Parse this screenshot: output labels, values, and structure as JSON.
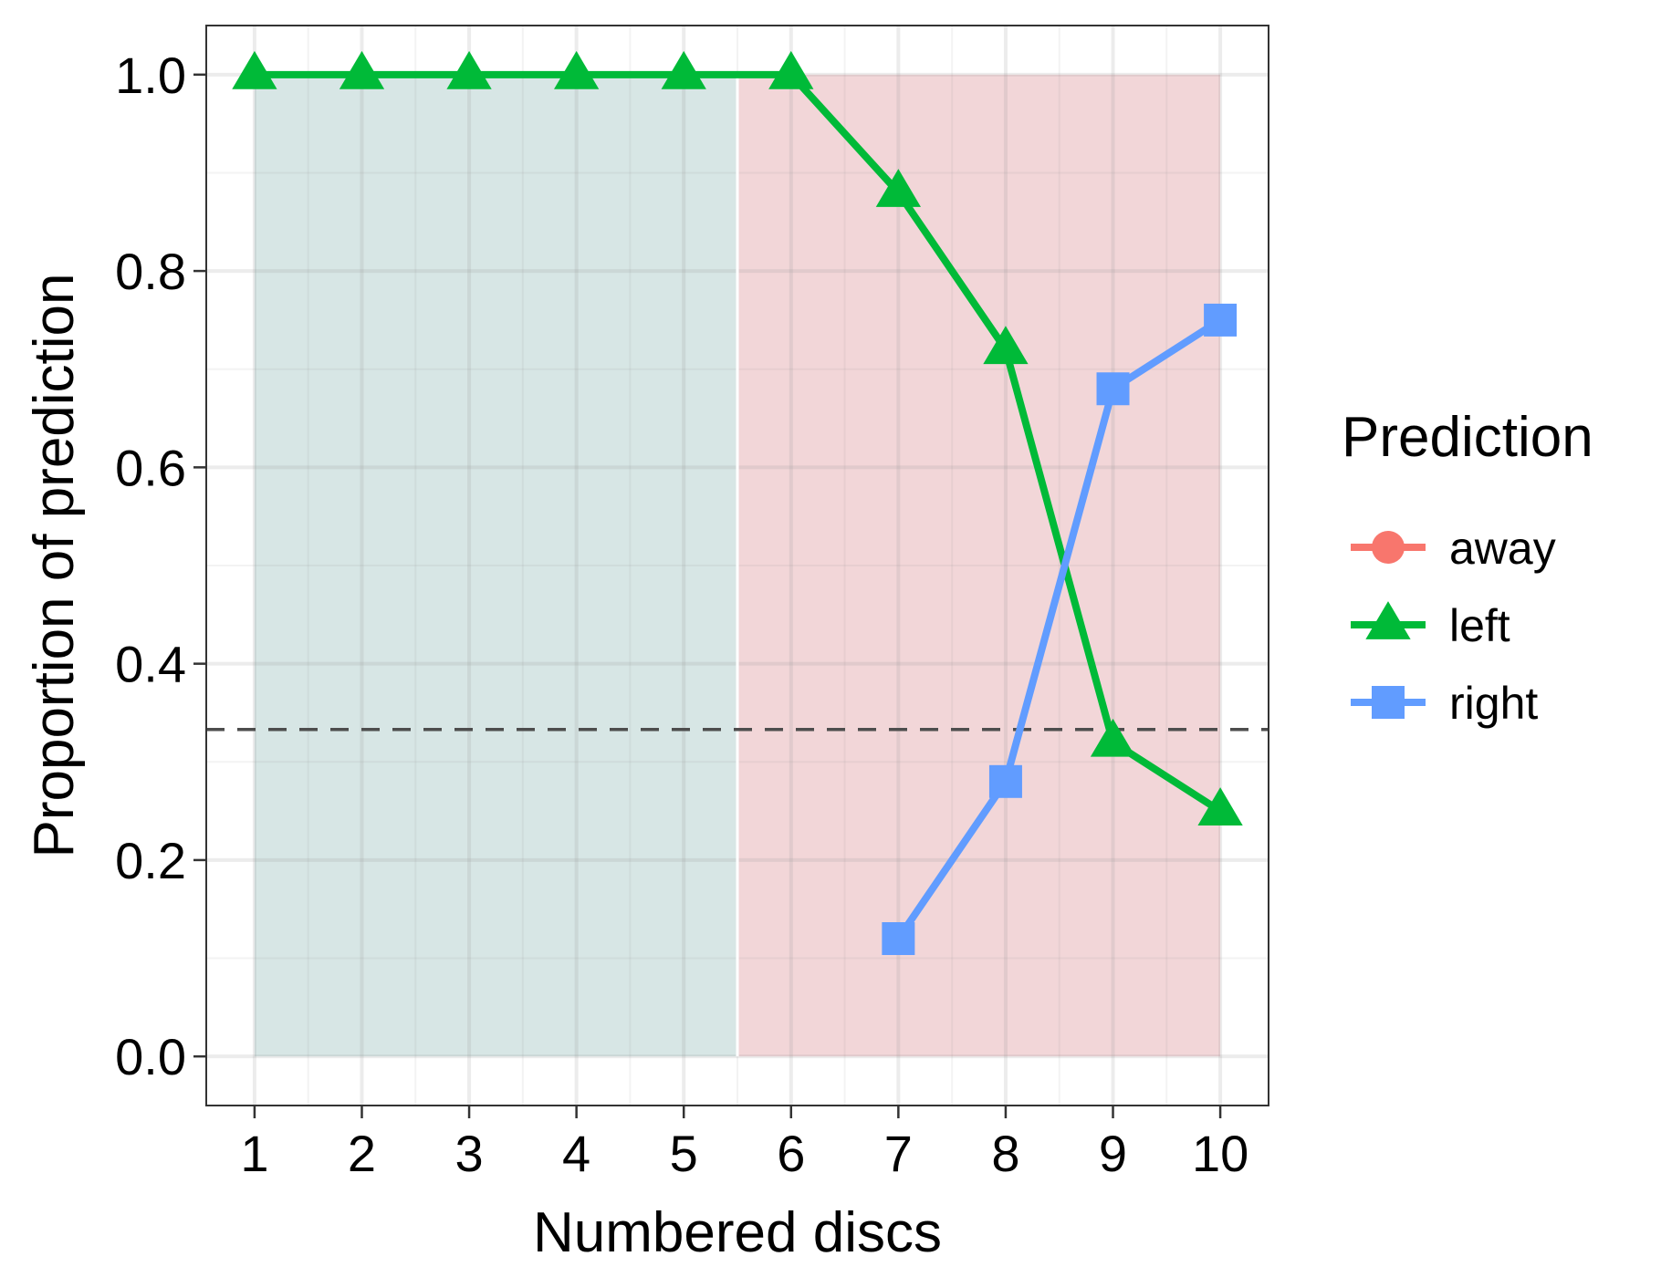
{
  "chart_data": {
    "type": "line",
    "title": "",
    "xlabel": "Numbered discs",
    "ylabel": "Proportion of prediction",
    "x": [
      1,
      2,
      3,
      4,
      5,
      6,
      7,
      8,
      9,
      10
    ],
    "xlim": [
      0.55,
      10.45
    ],
    "ylim": [
      -0.05,
      1.05
    ],
    "x_ticks": [
      "1",
      "2",
      "3",
      "4",
      "5",
      "6",
      "7",
      "8",
      "9",
      "10"
    ],
    "y_ticks": [
      "0.0",
      "0.2",
      "0.4",
      "0.6",
      "0.8",
      "1.0"
    ],
    "grid": true,
    "reference_line": {
      "y": 0.333,
      "style": "dashed",
      "color": "#4d4d4d"
    },
    "regions": [
      {
        "x_start": 1,
        "x_end": 5.5,
        "y_start": 0,
        "y_end": 1,
        "color": "#d7e6e5"
      },
      {
        "x_start": 5.5,
        "x_end": 10,
        "y_start": 0,
        "y_end": 1,
        "color": "#f2d6d8"
      }
    ],
    "legend": {
      "title": "Prediction",
      "position": "right"
    },
    "series": [
      {
        "name": "away",
        "color": "#F8766D",
        "marker": "circle",
        "x": [],
        "y": []
      },
      {
        "name": "left",
        "color": "#00BA38",
        "marker": "triangle",
        "x": [
          1,
          2,
          3,
          4,
          5,
          6,
          7,
          8,
          9,
          10
        ],
        "y": [
          1.0,
          1.0,
          1.0,
          1.0,
          1.0,
          1.0,
          0.88,
          0.72,
          0.32,
          0.25
        ]
      },
      {
        "name": "right",
        "color": "#619CFF",
        "marker": "square",
        "x": [
          7,
          8,
          9,
          10
        ],
        "y": [
          0.12,
          0.28,
          0.68,
          0.75
        ]
      }
    ]
  }
}
